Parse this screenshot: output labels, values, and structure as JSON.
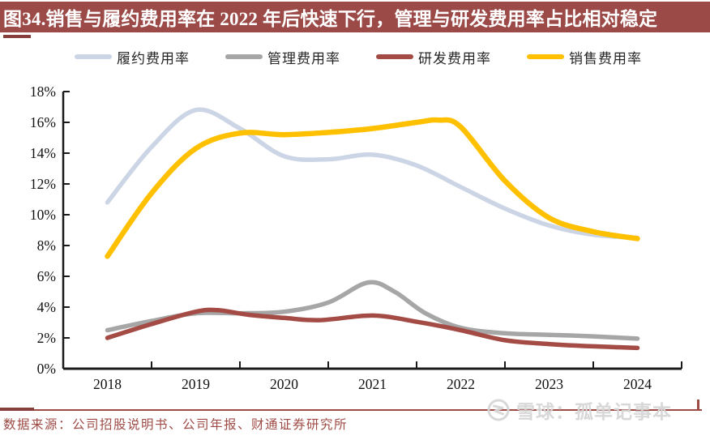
{
  "header": {
    "title": "图34.销售与履约费用率在 2022 年后快速下行，管理与研发费用率占比相对稳定"
  },
  "footer": {
    "source": "数据来源：公司招股说明书、公司年报、财通证券研究所",
    "watermark": "雪球：孤单记事本"
  },
  "colors": {
    "title_bar_bg": "#9b4a47",
    "title_text": "#ffffff",
    "accent_line": "#9e4b45",
    "accent_dash": "#873f3b",
    "axis": "#1a1a1a",
    "tick_label": "#111111",
    "watermark": "#d6d6d6"
  },
  "chart_data": {
    "type": "line",
    "title": "图34.销售与履约费用率在 2022 年后快速下行，管理与研发费用率占比相对稳定",
    "xlabel": "",
    "ylabel": "",
    "grid": false,
    "legend_position": "top",
    "x_axis": {
      "labels": [
        "2018",
        "2019",
        "2020",
        "2021",
        "2022",
        "2023",
        "2024"
      ],
      "range": [
        2017.5,
        2024.5
      ]
    },
    "y_axis": {
      "tick_labels": [
        "0%",
        "2%",
        "4%",
        "6%",
        "8%",
        "10%",
        "12%",
        "14%",
        "16%",
        "18%"
      ],
      "range": [
        0,
        18
      ],
      "step": 2,
      "unit": "%"
    },
    "series": [
      {
        "name": "履约费用率",
        "color": "#ccd5e5",
        "stroke_width": 5.5,
        "points": [
          [
            2018,
            10.8
          ],
          [
            2018.5,
            14.4
          ],
          [
            2019,
            16.8
          ],
          [
            2019.5,
            15.6
          ],
          [
            2020,
            13.8
          ],
          [
            2020.5,
            13.6
          ],
          [
            2021,
            13.9
          ],
          [
            2021.5,
            13.2
          ],
          [
            2022,
            11.8
          ],
          [
            2022.5,
            10.4
          ],
          [
            2023,
            9.3
          ],
          [
            2023.5,
            8.7
          ],
          [
            2024,
            8.5
          ]
        ]
      },
      {
        "name": "管理费用率",
        "color": "#a6a6a6",
        "stroke_width": 5.5,
        "points": [
          [
            2018,
            2.5
          ],
          [
            2018.5,
            3.1
          ],
          [
            2019,
            3.6
          ],
          [
            2019.5,
            3.6
          ],
          [
            2020,
            3.7
          ],
          [
            2020.5,
            4.3
          ],
          [
            2020.95,
            5.6
          ],
          [
            2021.25,
            5.0
          ],
          [
            2021.6,
            3.6
          ],
          [
            2022,
            2.65
          ],
          [
            2022.5,
            2.3
          ],
          [
            2023,
            2.2
          ],
          [
            2023.5,
            2.1
          ],
          [
            2024,
            1.95
          ]
        ]
      },
      {
        "name": "研发费用率",
        "color": "#a34b44",
        "stroke_width": 5.5,
        "points": [
          [
            2018,
            2.0
          ],
          [
            2018.5,
            2.9
          ],
          [
            2019,
            3.7
          ],
          [
            2019.25,
            3.8
          ],
          [
            2019.6,
            3.5
          ],
          [
            2020,
            3.3
          ],
          [
            2020.4,
            3.15
          ],
          [
            2021,
            3.45
          ],
          [
            2021.5,
            3.05
          ],
          [
            2022,
            2.5
          ],
          [
            2022.5,
            1.85
          ],
          [
            2023,
            1.6
          ],
          [
            2023.5,
            1.45
          ],
          [
            2024,
            1.35
          ]
        ]
      },
      {
        "name": "销售费用率",
        "color": "#ffc000",
        "stroke_width": 6.5,
        "points": [
          [
            2018,
            7.3
          ],
          [
            2018.5,
            11.4
          ],
          [
            2019,
            14.3
          ],
          [
            2019.5,
            15.3
          ],
          [
            2020,
            15.2
          ],
          [
            2020.5,
            15.35
          ],
          [
            2021,
            15.6
          ],
          [
            2021.5,
            16.0
          ],
          [
            2021.75,
            16.15
          ],
          [
            2022,
            15.7
          ],
          [
            2022.5,
            12.2
          ],
          [
            2023,
            9.8
          ],
          [
            2023.5,
            8.9
          ],
          [
            2024,
            8.45
          ]
        ]
      }
    ]
  }
}
